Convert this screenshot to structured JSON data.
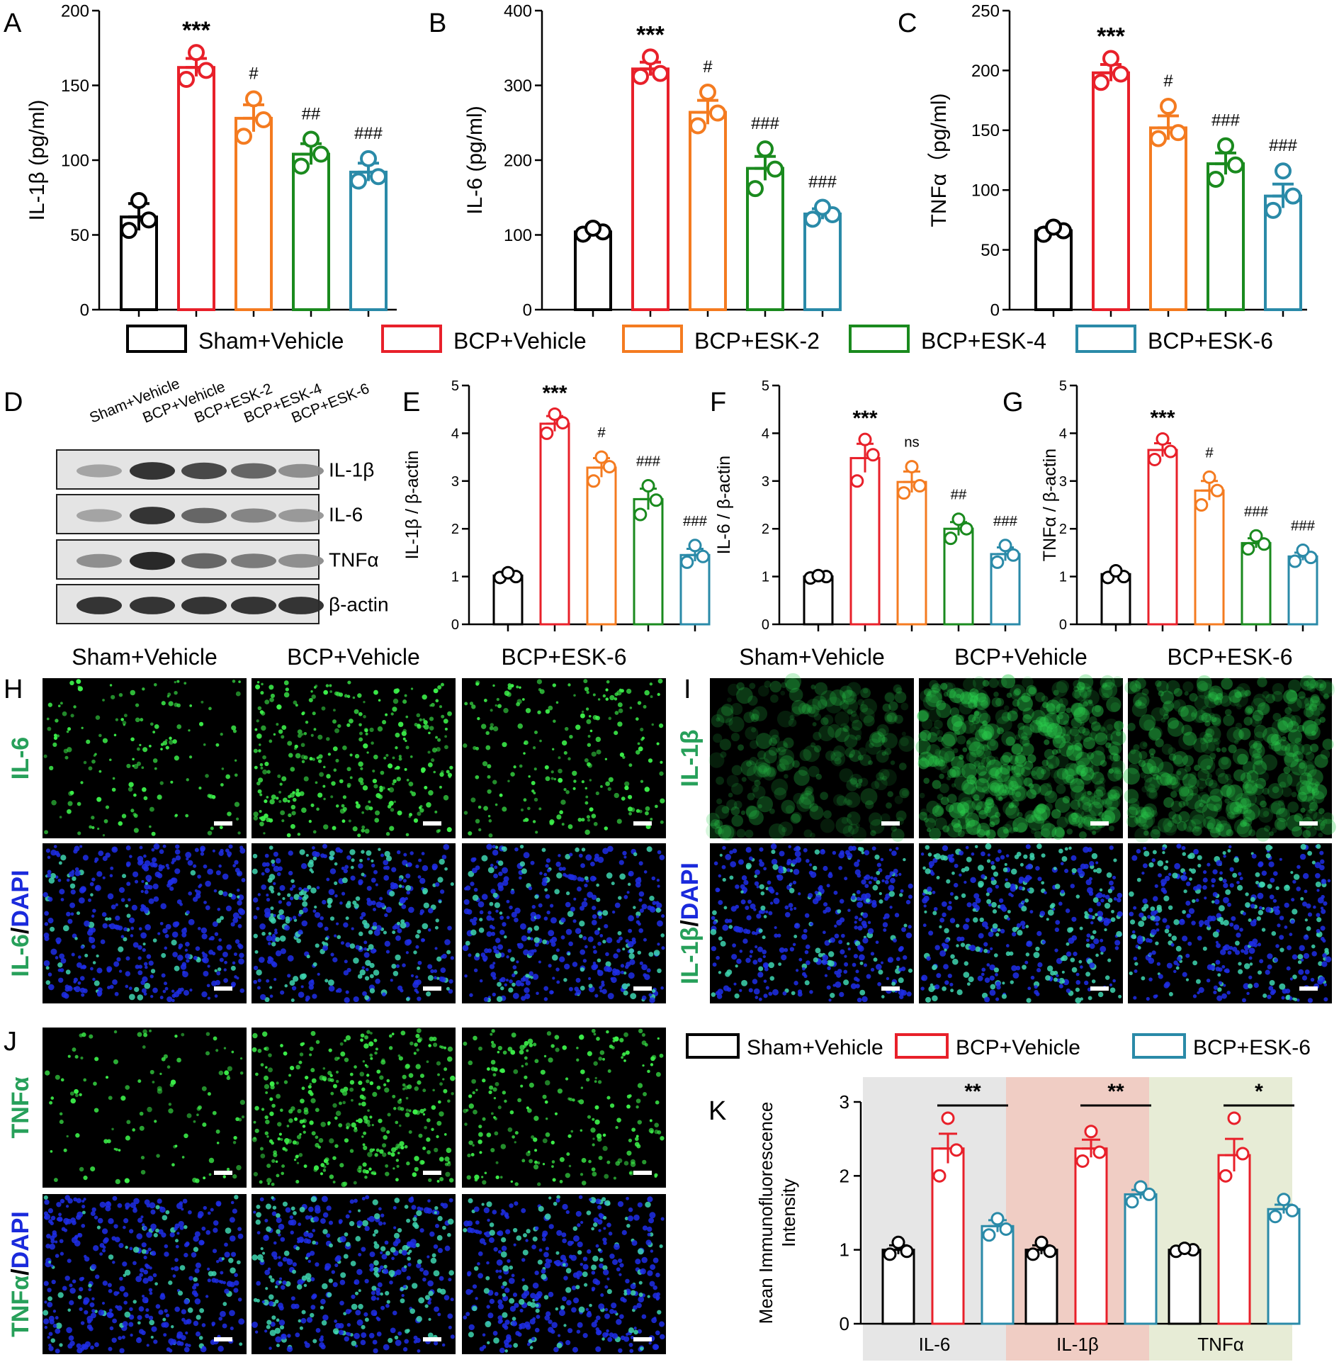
{
  "colors": {
    "sham": "#000000",
    "bcp": "#e8202a",
    "esk2": "#f47b20",
    "esk4": "#1a8a1e",
    "esk6": "#2a8aa8",
    "if_green": "#27a05a",
    "if_blue": "#1a2adc",
    "bg_il6": "#e6e6e6",
    "bg_il1b": "#f0cdc4",
    "bg_tnfa": "#e7ecd6"
  },
  "panel_labels": [
    "A",
    "B",
    "C",
    "D",
    "E",
    "F",
    "G",
    "H",
    "I",
    "J",
    "K"
  ],
  "legend_top": {
    "entries": [
      {
        "name": "Sham+Vehicle",
        "color_key": "sham"
      },
      {
        "name": "BCP+Vehicle",
        "color_key": "bcp"
      },
      {
        "name": "BCP+ESK-2",
        "color_key": "esk2"
      },
      {
        "name": "BCP+ESK-4",
        "color_key": "esk4"
      },
      {
        "name": "BCP+ESK-6",
        "color_key": "esk6"
      }
    ]
  },
  "legend_k": {
    "entries": [
      {
        "name": "Sham+Vehicle",
        "color_key": "sham"
      },
      {
        "name": "BCP+Vehicle",
        "color_key": "bcp"
      },
      {
        "name": "BCP+ESK-6",
        "color_key": "esk6"
      }
    ]
  },
  "western_blot": {
    "lanes": [
      "Sham+Vehicle",
      "BCP+Vehicle",
      "BCP+ESK-2",
      "BCP+ESK-4",
      "BCP+ESK-6"
    ],
    "rows": [
      "IL-1β",
      "IL-6",
      "TNFα",
      "β-actin"
    ],
    "intensity": [
      [
        0.35,
        0.9,
        0.8,
        0.65,
        0.45
      ],
      [
        0.35,
        0.9,
        0.65,
        0.5,
        0.4
      ],
      [
        0.45,
        0.95,
        0.65,
        0.55,
        0.45
      ],
      [
        0.9,
        0.9,
        0.9,
        0.9,
        0.9
      ]
    ]
  },
  "if_panels": {
    "H": {
      "columns": [
        "Sham+Vehicle",
        "BCP+Vehicle",
        "BCP+ESK-6"
      ],
      "row1": "IL-6",
      "row2_marker": "IL-6",
      "row2_sep": "/",
      "row2_dapi": "DAPI"
    },
    "I": {
      "columns": [
        "Sham+Vehicle",
        "BCP+Vehicle",
        "BCP+ESK-6"
      ],
      "row1": "IL-1β",
      "row2_marker": "IL-1β",
      "row2_sep": "/",
      "row2_dapi": "DAPI"
    },
    "J": {
      "columns": [],
      "row1": "TNFα",
      "row2_marker": "TNFα",
      "row2_sep": "/",
      "row2_dapi": "DAPI"
    }
  },
  "chart_data": [
    {
      "id": "A",
      "type": "bar",
      "ylabel": "IL-1β (pg/ml)",
      "ylim": [
        0,
        200
      ],
      "yticks": [
        0,
        50,
        100,
        150,
        200
      ],
      "categories": [
        "Sham+Vehicle",
        "BCP+Vehicle",
        "BCP+ESK-2",
        "BCP+ESK-4",
        "BCP+ESK-6"
      ],
      "values": [
        62,
        162,
        128,
        104,
        92
      ],
      "sem": [
        9,
        6,
        9,
        7,
        6
      ],
      "points": [
        [
          53,
          60,
          73
        ],
        [
          154,
          160,
          172
        ],
        [
          116,
          127,
          141
        ],
        [
          96,
          104,
          114
        ],
        [
          86,
          89,
          101
        ]
      ],
      "annotations": [
        "",
        "***",
        "#",
        "##",
        "###"
      ]
    },
    {
      "id": "B",
      "type": "bar",
      "ylabel": "IL-6 (pg/ml)",
      "ylim": [
        0,
        400
      ],
      "yticks": [
        0,
        100,
        200,
        300,
        400
      ],
      "categories": [
        "Sham+Vehicle",
        "BCP+Vehicle",
        "BCP+ESK-2",
        "BCP+ESK-4",
        "BCP+ESK-6"
      ],
      "values": [
        104,
        322,
        264,
        189,
        128
      ],
      "sem": [
        4,
        9,
        16,
        16,
        7
      ],
      "points": [
        [
          101,
          104,
          109
        ],
        [
          312,
          316,
          338
        ],
        [
          246,
          263,
          291
        ],
        [
          162,
          188,
          215
        ],
        [
          121,
          127,
          137
        ]
      ],
      "annotations": [
        "",
        "***",
        "#",
        "###",
        "###"
      ]
    },
    {
      "id": "C",
      "type": "bar",
      "ylabel": "TNFα（pg/ml)",
      "ylim": [
        0,
        250
      ],
      "yticks": [
        0,
        50,
        100,
        150,
        200,
        250
      ],
      "categories": [
        "Sham+Vehicle",
        "BCP+Vehicle",
        "BCP+ESK-2",
        "BCP+ESK-4",
        "BCP+ESK-6"
      ],
      "values": [
        66,
        198,
        152,
        122,
        95
      ],
      "sem": [
        3,
        7,
        10,
        9,
        10
      ],
      "points": [
        [
          63,
          66,
          69
        ],
        [
          190,
          197,
          210
        ],
        [
          143,
          148,
          170
        ],
        [
          109,
          121,
          137
        ],
        [
          83,
          95,
          116
        ]
      ],
      "annotations": [
        "",
        "***",
        "#",
        "###",
        "###"
      ]
    },
    {
      "id": "E",
      "type": "bar",
      "ylabel": "IL-1β / β-actin",
      "ylim": [
        0,
        5
      ],
      "yticks": [
        0,
        1,
        2,
        3,
        4,
        5
      ],
      "categories": [
        "Sham+Vehicle",
        "BCP+Vehicle",
        "BCP+ESK-2",
        "BCP+ESK-4",
        "BCP+ESK-6"
      ],
      "values": [
        1.02,
        4.2,
        3.28,
        2.62,
        1.45
      ],
      "sem": [
        0.05,
        0.16,
        0.2,
        0.22,
        0.13
      ],
      "points": [
        [
          0.98,
          1.0,
          1.08
        ],
        [
          4.0,
          4.22,
          4.4
        ],
        [
          3.0,
          3.3,
          3.5
        ],
        [
          2.3,
          2.6,
          2.9
        ],
        [
          1.3,
          1.42,
          1.65
        ]
      ],
      "annotations": [
        "",
        "***",
        "#",
        "###",
        "###"
      ]
    },
    {
      "id": "F",
      "type": "bar",
      "ylabel": "IL-6 / β-actin",
      "ylim": [
        0,
        5
      ],
      "yticks": [
        0,
        1,
        2,
        3,
        4,
        5
      ],
      "categories": [
        "Sham+Vehicle",
        "BCP+Vehicle",
        "BCP+ESK-2",
        "BCP+ESK-4",
        "BCP+ESK-6"
      ],
      "values": [
        1.0,
        3.48,
        2.98,
        2.0,
        1.47
      ],
      "sem": [
        0.03,
        0.3,
        0.22,
        0.14,
        0.14
      ],
      "points": [
        [
          0.97,
          1.0,
          1.02
        ],
        [
          3.0,
          3.55,
          3.87
        ],
        [
          2.75,
          2.9,
          3.3
        ],
        [
          1.8,
          2.0,
          2.2
        ],
        [
          1.3,
          1.45,
          1.65
        ]
      ],
      "annotations": [
        "",
        "***",
        "ns",
        "##",
        "###"
      ]
    },
    {
      "id": "G",
      "type": "bar",
      "ylabel": "TNFα / β-actin",
      "ylim": [
        0,
        5
      ],
      "yticks": [
        0,
        1,
        2,
        3,
        4,
        5
      ],
      "categories": [
        "Sham+Vehicle",
        "BCP+Vehicle",
        "BCP+ESK-2",
        "BCP+ESK-4",
        "BCP+ESK-6"
      ],
      "values": [
        1.05,
        3.65,
        2.8,
        1.7,
        1.42
      ],
      "sem": [
        0.05,
        0.14,
        0.2,
        0.1,
        0.08
      ],
      "points": [
        [
          0.98,
          1.0,
          1.12
        ],
        [
          3.45,
          3.62,
          3.88
        ],
        [
          2.5,
          2.8,
          3.08
        ],
        [
          1.58,
          1.68,
          1.85
        ],
        [
          1.32,
          1.4,
          1.55
        ]
      ],
      "annotations": [
        "",
        "***",
        "#",
        "###",
        "###"
      ]
    },
    {
      "id": "K",
      "type": "bar",
      "ylabel": "Mean Immunofluorescence Intensity",
      "ylabel_line1": "Mean Immunofluorescence",
      "ylabel_line2": "Intensity",
      "ylim": [
        0,
        3
      ],
      "yticks": [
        0,
        1,
        2,
        3
      ],
      "groups": [
        "IL-6",
        "IL-1β",
        "TNFα"
      ],
      "series": [
        {
          "name": "Sham+Vehicle",
          "color_key": "sham",
          "values": [
            1.0,
            1.0,
            1.0
          ],
          "sem": [
            0.06,
            0.06,
            0.02
          ],
          "points": [
            [
              0.94,
              0.98,
              1.1
            ],
            [
              0.94,
              0.98,
              1.1
            ],
            [
              0.98,
              1.0,
              1.02
            ]
          ]
        },
        {
          "name": "BCP+Vehicle",
          "color_key": "bcp",
          "values": [
            2.37,
            2.37,
            2.28
          ],
          "sem": [
            0.2,
            0.12,
            0.22
          ],
          "points": [
            [
              2.0,
              2.35,
              2.78
            ],
            [
              2.2,
              2.32,
              2.6
            ],
            [
              2.0,
              2.3,
              2.78
            ]
          ]
        },
        {
          "name": "BCP+ESK-6",
          "color_key": "esk6",
          "values": [
            1.32,
            1.75,
            1.55
          ],
          "sem": [
            0.08,
            0.06,
            0.06
          ],
          "points": [
            [
              1.2,
              1.28,
              1.42
            ],
            [
              1.65,
              1.75,
              1.85
            ],
            [
              1.45,
              1.53,
              1.68
            ]
          ]
        }
      ],
      "significance": [
        "**",
        "**",
        "*"
      ]
    }
  ]
}
